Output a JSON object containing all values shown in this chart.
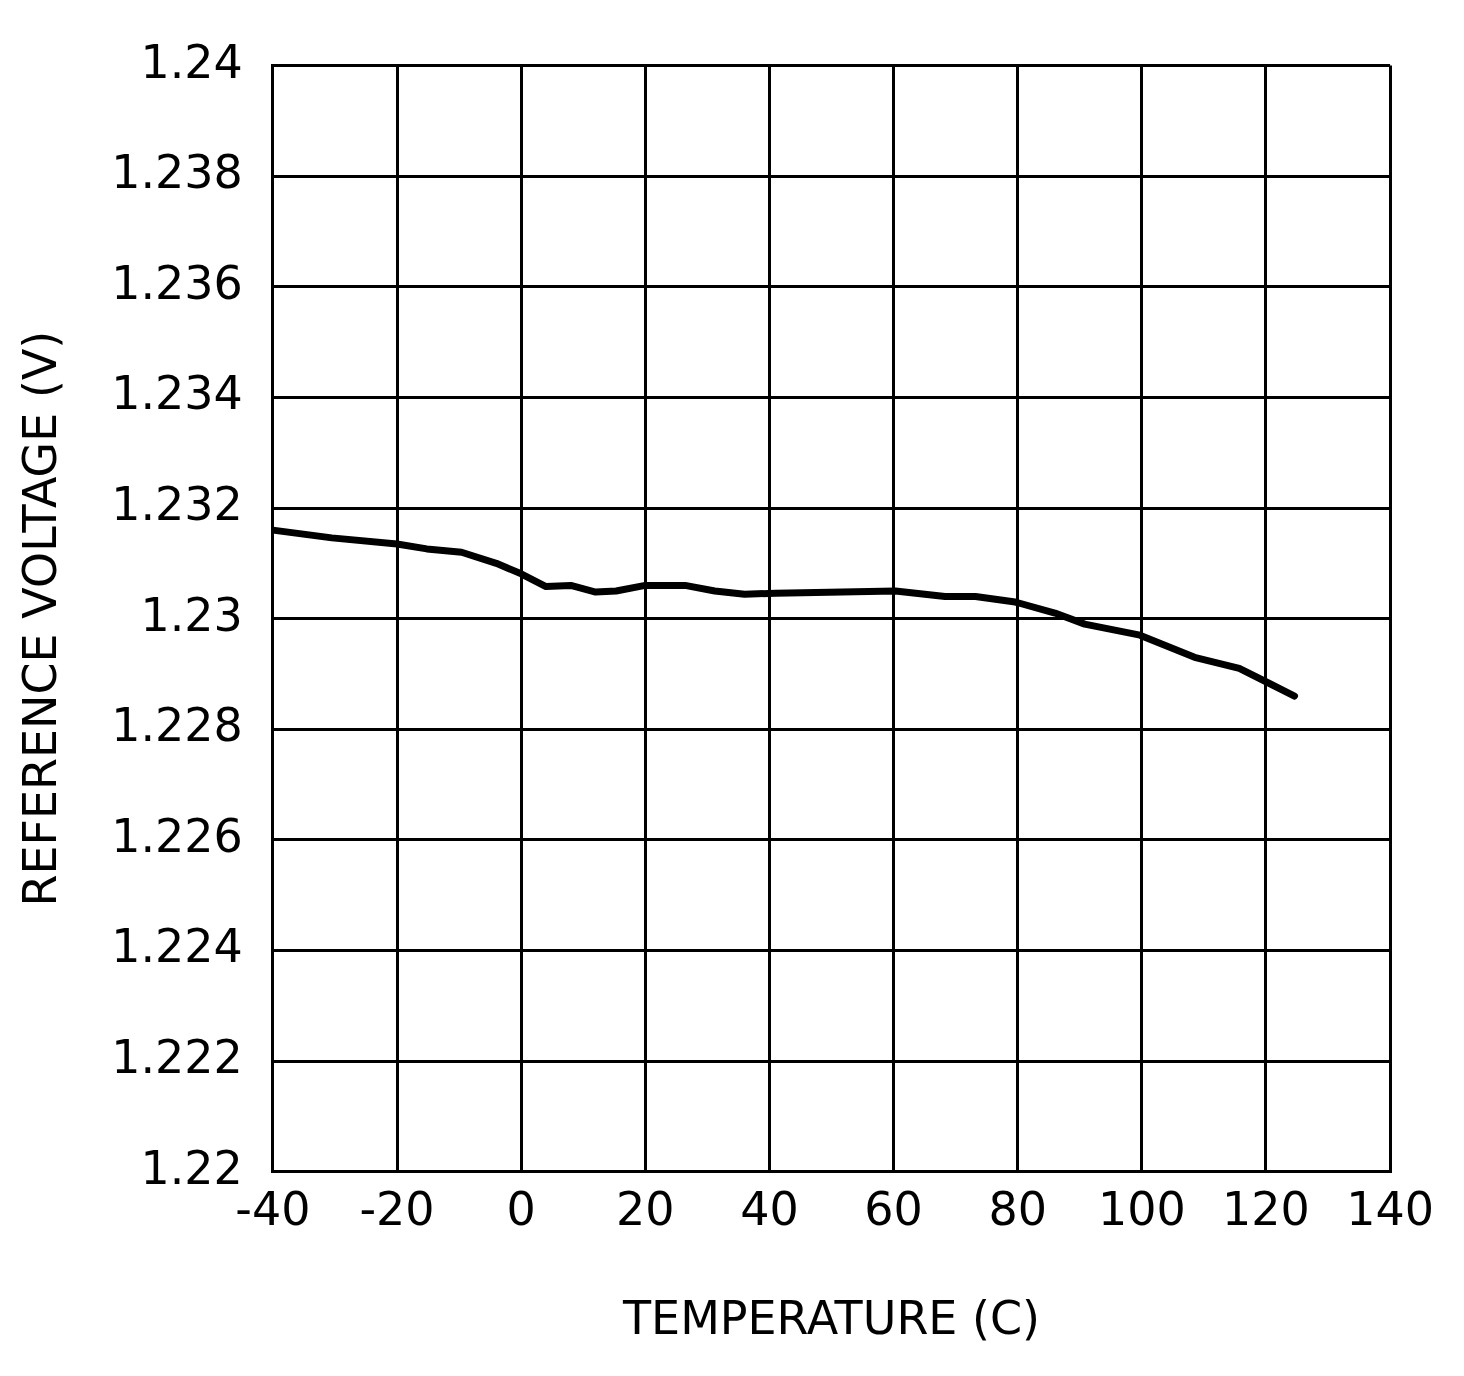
{
  "chart_data": {
    "type": "line",
    "xlabel": "TEMPERATURE (C)",
    "ylabel": "REFERENCE VOLTAGE (V)",
    "x": [
      -40,
      -30.5,
      -20,
      -15.2,
      -9.6,
      -4,
      0,
      4,
      8,
      12,
      15.3,
      20,
      26.4,
      31.2,
      36,
      41,
      60.3,
      68.3,
      73.2,
      79.6,
      86,
      90.8,
      99.7,
      108.5,
      115.7,
      124.6
    ],
    "series": [
      {
        "color": "#000000",
        "values": [
          1.2316,
          1.23146,
          1.23135,
          1.23126,
          1.2312,
          1.231,
          1.23081,
          1.23058,
          1.2306,
          1.23048,
          1.2305,
          1.2306,
          1.2306,
          1.2305,
          1.23044,
          1.23046,
          1.2305,
          1.2304,
          1.2304,
          1.2303,
          1.2301,
          1.2299,
          1.2297,
          1.2293,
          1.2291,
          1.2286
        ]
      }
    ],
    "xlim": [
      -40,
      140
    ],
    "xticks": [
      -40,
      -20,
      0,
      20,
      40,
      60,
      80,
      100,
      120,
      140
    ],
    "ylim": [
      1.22,
      1.24
    ],
    "yticks": [
      1.22,
      1.222,
      1.224,
      1.226,
      1.228,
      1.23,
      1.232,
      1.234,
      1.236,
      1.238,
      1.24
    ],
    "grid": true,
    "legend": false,
    "marker": "none",
    "line_style": "solid"
  }
}
